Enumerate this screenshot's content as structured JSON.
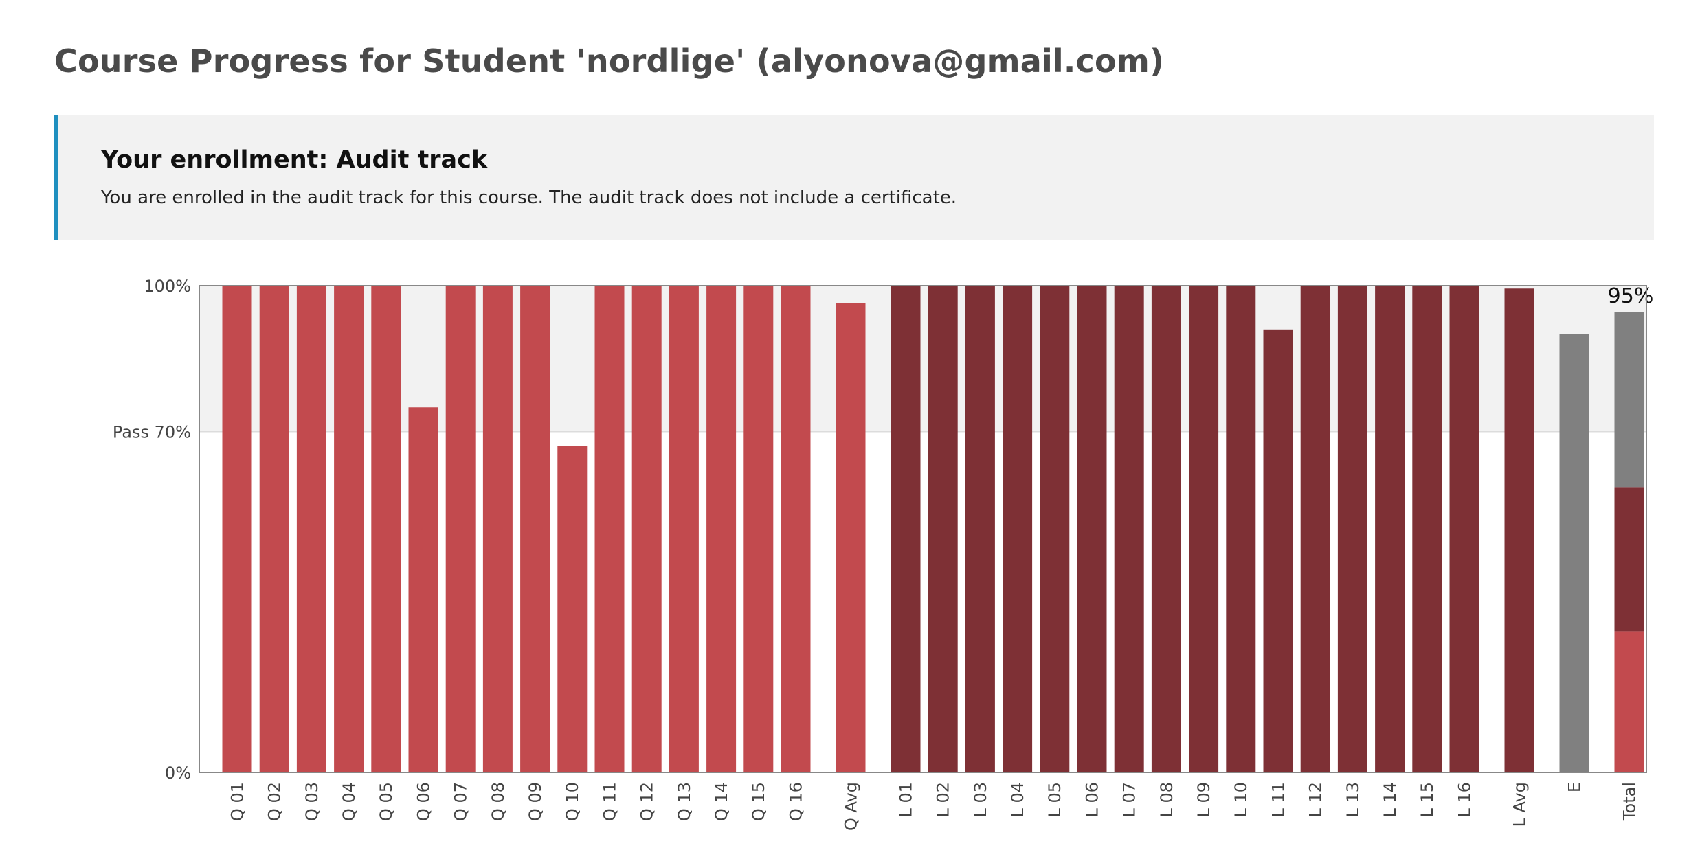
{
  "page": {
    "title": "Course Progress for Student 'nordlige' (alyonova@gmail.com)"
  },
  "enrollment": {
    "heading": "Your enrollment: Audit track",
    "message": "You are enrolled in the audit track for this course. The audit track does not include a certificate."
  },
  "colors": {
    "quiz": "#c24a4e",
    "lab": "#7e3035",
    "exam": "#808080",
    "pass_band": "#f2f2f2",
    "accent": "#1f8fbf"
  },
  "chart_data": {
    "type": "bar",
    "ylim": [
      0,
      100
    ],
    "y_ticks": [
      {
        "value": 100,
        "label": "100%"
      },
      {
        "value": 70,
        "label": "Pass 70%"
      },
      {
        "value": 0,
        "label": "0%"
      }
    ],
    "pass_threshold": 70,
    "bars": [
      {
        "label": "Q 01",
        "value": 100,
        "kind": "quiz"
      },
      {
        "label": "Q 02",
        "value": 100,
        "kind": "quiz"
      },
      {
        "label": "Q 03",
        "value": 100,
        "kind": "quiz"
      },
      {
        "label": "Q 04",
        "value": 100,
        "kind": "quiz"
      },
      {
        "label": "Q 05",
        "value": 100,
        "kind": "quiz"
      },
      {
        "label": "Q 06",
        "value": 75,
        "kind": "quiz"
      },
      {
        "label": "Q 07",
        "value": 100,
        "kind": "quiz"
      },
      {
        "label": "Q 08",
        "value": 100,
        "kind": "quiz"
      },
      {
        "label": "Q 09",
        "value": 100,
        "kind": "quiz"
      },
      {
        "label": "Q 10",
        "value": 67,
        "kind": "quiz"
      },
      {
        "label": "Q 11",
        "value": 100,
        "kind": "quiz"
      },
      {
        "label": "Q 12",
        "value": 100,
        "kind": "quiz"
      },
      {
        "label": "Q 13",
        "value": 100,
        "kind": "quiz"
      },
      {
        "label": "Q 14",
        "value": 100,
        "kind": "quiz"
      },
      {
        "label": "Q 15",
        "value": 100,
        "kind": "quiz"
      },
      {
        "label": "Q 16",
        "value": 100,
        "kind": "quiz"
      },
      {
        "label": "Q Avg",
        "value": 96.4,
        "kind": "quiz",
        "avg": true
      },
      {
        "label": "L 01",
        "value": 100,
        "kind": "lab"
      },
      {
        "label": "L 02",
        "value": 100,
        "kind": "lab"
      },
      {
        "label": "L 03",
        "value": 100,
        "kind": "lab"
      },
      {
        "label": "L 04",
        "value": 100,
        "kind": "lab"
      },
      {
        "label": "L 05",
        "value": 100,
        "kind": "lab"
      },
      {
        "label": "L 06",
        "value": 100,
        "kind": "lab"
      },
      {
        "label": "L 07",
        "value": 100,
        "kind": "lab"
      },
      {
        "label": "L 08",
        "value": 100,
        "kind": "lab"
      },
      {
        "label": "L 09",
        "value": 100,
        "kind": "lab"
      },
      {
        "label": "L 10",
        "value": 100,
        "kind": "lab"
      },
      {
        "label": "L 11",
        "value": 91,
        "kind": "lab"
      },
      {
        "label": "L 12",
        "value": 100,
        "kind": "lab"
      },
      {
        "label": "L 13",
        "value": 100,
        "kind": "lab"
      },
      {
        "label": "L 14",
        "value": 100,
        "kind": "lab"
      },
      {
        "label": "L 15",
        "value": 100,
        "kind": "lab"
      },
      {
        "label": "L 16",
        "value": 100,
        "kind": "lab"
      },
      {
        "label": "L Avg",
        "value": 99.4,
        "kind": "lab",
        "avg": true
      },
      {
        "label": "E",
        "value": 90,
        "kind": "exam",
        "avg": true
      }
    ],
    "total": {
      "label": "Total",
      "value_label": "95%",
      "segments": [
        {
          "kind": "quiz",
          "value": 29
        },
        {
          "kind": "lab",
          "value": 29.5
        },
        {
          "kind": "exam",
          "value": 36
        }
      ]
    }
  }
}
